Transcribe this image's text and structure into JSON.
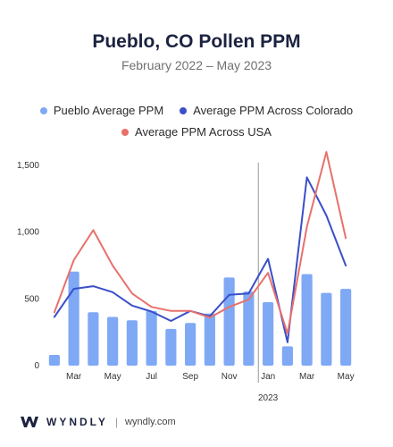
{
  "header": {
    "title": "Pueblo, CO Pollen PPM",
    "subtitle": "February 2022 – May 2023"
  },
  "footer": {
    "brand": "WYNDLY",
    "separator": "|",
    "site": "wyndly.com"
  },
  "chart_data": {
    "type": "bar",
    "x": [
      "2022-02",
      "2022-03",
      "2022-04",
      "2022-05",
      "2022-06",
      "2022-07",
      "2022-08",
      "2022-09",
      "2022-10",
      "2022-11",
      "2022-12",
      "2023-01",
      "2023-02",
      "2023-03",
      "2023-04",
      "2023-05"
    ],
    "tick_labels": [
      {
        "index": 1,
        "label": "Mar"
      },
      {
        "index": 3,
        "label": "May"
      },
      {
        "index": 5,
        "label": "Jul"
      },
      {
        "index": 7,
        "label": "Sep"
      },
      {
        "index": 9,
        "label": "Nov"
      },
      {
        "index": 11,
        "label": "Jan"
      },
      {
        "index": 13,
        "label": "Mar"
      },
      {
        "index": 15,
        "label": "May"
      }
    ],
    "year_marker": {
      "index": 11,
      "label": "2023"
    },
    "y_ticks": [
      0,
      500,
      1000,
      1500
    ],
    "y_tick_labels": [
      "0",
      "500",
      "1,000",
      "1,500"
    ],
    "ylim": [
      0,
      1600
    ],
    "grid": false,
    "legend_position": "top",
    "series": [
      {
        "name": "Pueblo Average PPM",
        "kind": "bar",
        "color": "#7fa9f5",
        "values": [
          80,
          705,
          400,
          365,
          340,
          410,
          275,
          320,
          390,
          660,
          555,
          475,
          145,
          685,
          545,
          575
        ]
      },
      {
        "name": "Average PPM Across Colorado",
        "kind": "line",
        "color": "#3a4fc9",
        "values": [
          365,
          575,
          595,
          550,
          450,
          405,
          335,
          410,
          370,
          530,
          540,
          800,
          175,
          1410,
          1125,
          750
        ]
      },
      {
        "name": "Average PPM Across USA",
        "kind": "line",
        "color": "#e8716b",
        "values": [
          400,
          790,
          1015,
          750,
          540,
          440,
          410,
          410,
          360,
          440,
          495,
          695,
          240,
          1040,
          1600,
          955
        ]
      }
    ]
  }
}
